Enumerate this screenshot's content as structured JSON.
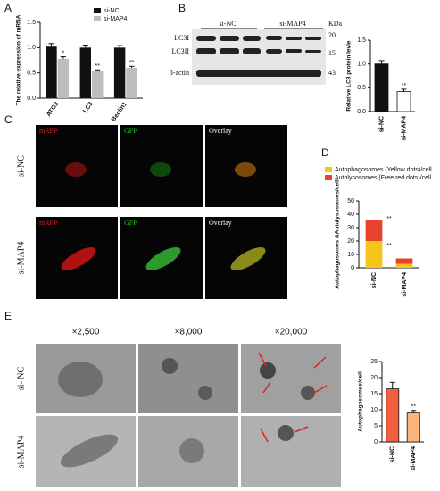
{
  "figure": {
    "panel_labels": [
      "A",
      "B",
      "C",
      "D",
      "E"
    ],
    "blot": {
      "lanes": [
        "si-NC",
        "si-MAP4"
      ],
      "unit": "KDa",
      "markers": [
        "20",
        "15",
        "43"
      ],
      "bands": [
        "LC3I",
        "LC3II",
        "β-actin"
      ]
    },
    "microscopy": {
      "channels": [
        "mRFP",
        "GFP",
        "Overlay"
      ],
      "groups": [
        "si-NC",
        "si-MAP4"
      ]
    },
    "em": {
      "magnifications": [
        "×2,500",
        "×8,000",
        "×20,000"
      ],
      "groups": [
        "si- NC",
        "si-MAP4"
      ]
    }
  },
  "chart_data": [
    {
      "type": "bar",
      "y_label": "The relative expression of mRNA",
      "categories": [
        "ATG3",
        "LC3",
        "Beclin1"
      ],
      "series": [
        {
          "name": "si-NC",
          "color": "#111111",
          "values": [
            1.02,
            1.0,
            1.0
          ],
          "errors": [
            0.06,
            0.05,
            0.04
          ]
        },
        {
          "name": "si-MAP4",
          "color": "#bdbdbd",
          "values": [
            0.78,
            0.53,
            0.6
          ],
          "errors": [
            0.04,
            0.03,
            0.03
          ],
          "significance": [
            "*",
            "**",
            "**"
          ]
        }
      ],
      "ylim": [
        0,
        1.5
      ],
      "yticks": [
        {
          "value": 0,
          "label": "0.0"
        },
        0.5,
        {
          "value": 1,
          "label": "1.0"
        },
        1.5
      ],
      "legend": "top-right"
    },
    {
      "type": "bar",
      "y_label": "Relative LC3 protein levle",
      "categories": [
        "si-NC",
        "si-MAP4"
      ],
      "values": [
        1.0,
        0.42
      ],
      "errors": [
        0.07,
        0.05
      ],
      "colors": [
        "#111111",
        "#ffffff"
      ],
      "annotation": "**",
      "ylim": [
        0,
        1.5
      ],
      "yticks": [
        {
          "value": 0,
          "label": "0.0"
        },
        0.5,
        {
          "value": 1,
          "label": "1.0"
        },
        1.5
      ]
    },
    {
      "type": "bar",
      "stacked": true,
      "y_label": "Autophagosomes &Autolysosomes/cell",
      "categories": [
        "si-NC",
        "si-MAP4"
      ],
      "series": [
        {
          "name": "Autophagosomes (Yellow dots)/cell",
          "color": "#f5c518",
          "values": [
            20,
            3
          ]
        },
        {
          "name": "Autolysosomes (Free red dots)/cell",
          "color": "#e8412c",
          "values": [
            16,
            4
          ]
        }
      ],
      "annotations": [
        "**",
        "**"
      ],
      "ylim": [
        0,
        50
      ],
      "yticks": [
        0,
        10,
        20,
        30,
        40,
        50
      ],
      "legend": "top"
    },
    {
      "type": "bar",
      "y_label": "Autophagosomes/cell",
      "categories": [
        "si-NC",
        "si-MAP4"
      ],
      "values": [
        16.5,
        9
      ],
      "errors": [
        2,
        0.8
      ],
      "colors": [
        "#f0603c",
        "#fbb57a"
      ],
      "annotation": "**",
      "ylim": [
        0,
        25
      ],
      "yticks": [
        0,
        5,
        10,
        15,
        20,
        25
      ]
    }
  ]
}
